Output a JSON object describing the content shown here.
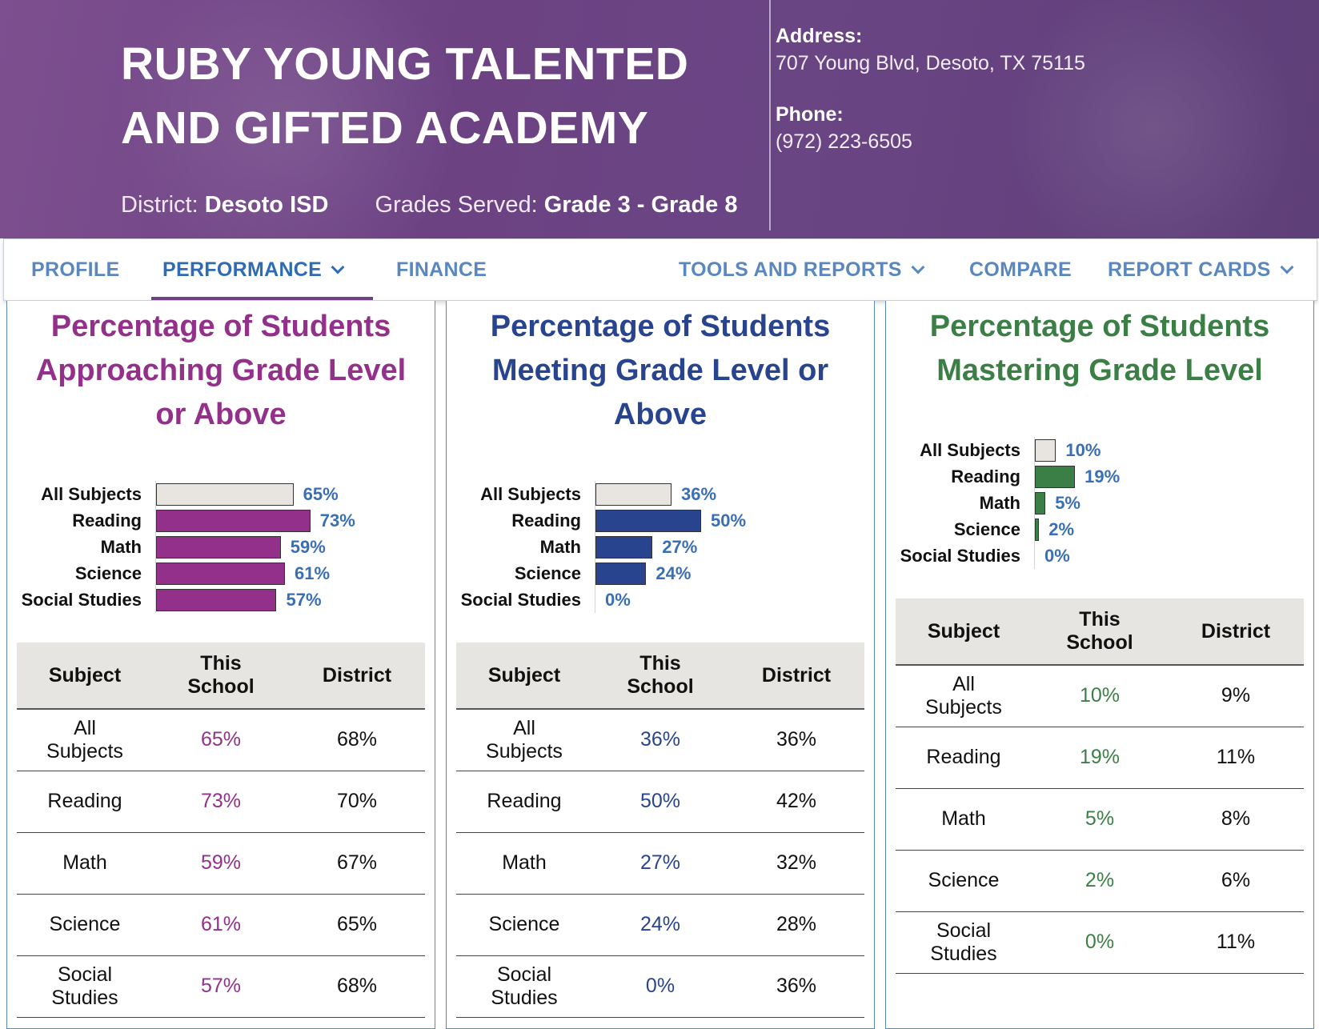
{
  "header": {
    "title_line1": "RUBY YOUNG TALENTED",
    "title_line2": "AND GIFTED ACADEMY",
    "district_label": "District:",
    "district_value": "Desoto ISD",
    "grades_label": "Grades Served:",
    "grades_value": "Grade 3 - Grade 8",
    "address_label": "Address:",
    "address_value": "707 Young Blvd, Desoto, TX 75115",
    "phone_label": "Phone:",
    "phone_value": "(972) 223-6505"
  },
  "nav": {
    "items": [
      {
        "label": "PROFILE"
      },
      {
        "label": "PERFORMANCE"
      },
      {
        "label": "FINANCE"
      },
      {
        "label": "TOOLS AND REPORTS"
      },
      {
        "label": "COMPARE"
      },
      {
        "label": "REPORT CARDS"
      }
    ]
  },
  "table_headers": {
    "subject": "Subject",
    "this_school_1": "This",
    "this_school_2": "School",
    "district": "District"
  },
  "chart_data": [
    {
      "type": "bar",
      "title_lines": [
        "Percentage of Students",
        "Approaching Grade Level",
        "or Above"
      ],
      "color": "#93318a",
      "base_color": "#e8e5e0",
      "categories": [
        "All Subjects",
        "Reading",
        "Math",
        "Science",
        "Social Studies"
      ],
      "values": [
        65,
        73,
        59,
        61,
        57
      ],
      "value_labels": [
        "65%",
        "73%",
        "59%",
        "61%",
        "57%"
      ],
      "table": [
        {
          "subject_1": "All",
          "subject_2": "Subjects",
          "school": "65%",
          "district": "68%"
        },
        {
          "subject_1": "Reading",
          "subject_2": "",
          "school": "73%",
          "district": "70%"
        },
        {
          "subject_1": "Math",
          "subject_2": "",
          "school": "59%",
          "district": "67%"
        },
        {
          "subject_1": "Science",
          "subject_2": "",
          "school": "61%",
          "district": "65%"
        },
        {
          "subject_1": "Social",
          "subject_2": "Studies",
          "school": "57%",
          "district": "68%"
        }
      ]
    },
    {
      "type": "bar",
      "title_lines": [
        "Percentage of Students",
        "Meeting Grade Level or",
        "Above"
      ],
      "color": "#29448f",
      "base_color": "#e8e5e0",
      "categories": [
        "All Subjects",
        "Reading",
        "Math",
        "Science",
        "Social Studies"
      ],
      "values": [
        36,
        50,
        27,
        24,
        0
      ],
      "value_labels": [
        "36%",
        "50%",
        "27%",
        "24%",
        "0%"
      ],
      "table": [
        {
          "subject_1": "All",
          "subject_2": "Subjects",
          "school": "36%",
          "district": "36%"
        },
        {
          "subject_1": "Reading",
          "subject_2": "",
          "school": "50%",
          "district": "42%"
        },
        {
          "subject_1": "Math",
          "subject_2": "",
          "school": "27%",
          "district": "32%"
        },
        {
          "subject_1": "Science",
          "subject_2": "",
          "school": "24%",
          "district": "28%"
        },
        {
          "subject_1": "Social",
          "subject_2": "Studies",
          "school": "0%",
          "district": "36%"
        }
      ]
    },
    {
      "type": "bar",
      "title_lines": [
        "Percentage of Students",
        "Mastering Grade Level"
      ],
      "color": "#3c7f46",
      "base_color": "#e8e5e0",
      "categories": [
        "All Subjects",
        "Reading",
        "Math",
        "Science",
        "Social Studies"
      ],
      "values": [
        10,
        19,
        5,
        2,
        0
      ],
      "value_labels": [
        "10%",
        "19%",
        "5%",
        "2%",
        "0%"
      ],
      "table": [
        {
          "subject_1": "All",
          "subject_2": "Subjects",
          "school": "10%",
          "district": "9%"
        },
        {
          "subject_1": "Reading",
          "subject_2": "",
          "school": "19%",
          "district": "11%"
        },
        {
          "subject_1": "Math",
          "subject_2": "",
          "school": "5%",
          "district": "8%"
        },
        {
          "subject_1": "Science",
          "subject_2": "",
          "school": "2%",
          "district": "6%"
        },
        {
          "subject_1": "Social",
          "subject_2": "Studies",
          "school": "0%",
          "district": "11%"
        }
      ]
    }
  ]
}
